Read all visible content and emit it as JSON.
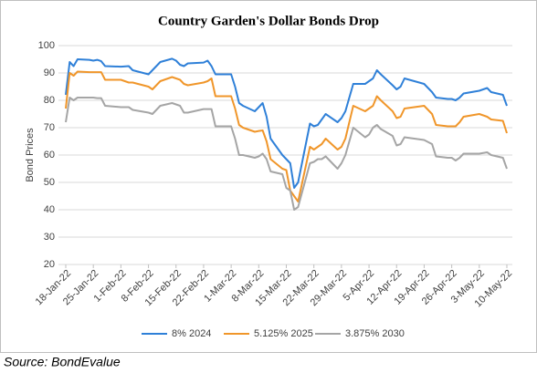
{
  "chart_data": {
    "type": "line",
    "title": "Country Garden's Dollar Bonds Drop",
    "y_label": "Bond Prices",
    "x": [
      "2022-01-18",
      "2022-01-19",
      "2022-01-20",
      "2022-01-21",
      "2022-01-24",
      "2022-01-25",
      "2022-01-26",
      "2022-01-27",
      "2022-01-28",
      "2022-02-01",
      "2022-02-03",
      "2022-02-04",
      "2022-02-08",
      "2022-02-09",
      "2022-02-11",
      "2022-02-14",
      "2022-02-15",
      "2022-02-16",
      "2022-02-17",
      "2022-02-18",
      "2022-02-22",
      "2022-02-23",
      "2022-02-24",
      "2022-02-25",
      "2022-03-01",
      "2022-03-02",
      "2022-03-03",
      "2022-03-04",
      "2022-03-07",
      "2022-03-08",
      "2022-03-09",
      "2022-03-10",
      "2022-03-11",
      "2022-03-14",
      "2022-03-15",
      "2022-03-16",
      "2022-03-17",
      "2022-03-18",
      "2022-03-21",
      "2022-03-22",
      "2022-03-23",
      "2022-03-24",
      "2022-03-25",
      "2022-03-28",
      "2022-03-29",
      "2022-03-30",
      "2022-04-01",
      "2022-04-04",
      "2022-04-05",
      "2022-04-06",
      "2022-04-07",
      "2022-04-08",
      "2022-04-11",
      "2022-04-12",
      "2022-04-13",
      "2022-04-14",
      "2022-04-19",
      "2022-04-21",
      "2022-04-22",
      "2022-04-25",
      "2022-04-26",
      "2022-04-27",
      "2022-04-28",
      "2022-04-29",
      "2022-05-03",
      "2022-05-05",
      "2022-05-06",
      "2022-05-09",
      "2022-05-10"
    ],
    "series": [
      {
        "name": "8% 2024",
        "color": "#2f80d8",
        "values": [
          82,
          94,
          92.5,
          95,
          94.8,
          94.5,
          94.8,
          94.3,
          92.5,
          92.3,
          92.5,
          91,
          89.5,
          91,
          94,
          95.2,
          94.5,
          93,
          92.5,
          93.5,
          93.8,
          94.5,
          92.5,
          89.5,
          89.5,
          85,
          79,
          78,
          76,
          77.5,
          79,
          74,
          66,
          60,
          58.5,
          57,
          48,
          50,
          71.5,
          70.5,
          71,
          73,
          75,
          72,
          73.5,
          76,
          86,
          86,
          87,
          88,
          91,
          89.5,
          85.5,
          84,
          85,
          88,
          86,
          83,
          81,
          80.5,
          80.5,
          80,
          81,
          82.5,
          83.5,
          84.5,
          83,
          82,
          78
        ]
      },
      {
        "name": "5.125% 2025",
        "color": "#f0962a",
        "values": [
          77,
          90,
          89,
          90.5,
          90.3,
          90.3,
          90.3,
          90.3,
          87.5,
          87.5,
          86.5,
          86.5,
          85,
          84,
          87,
          88.5,
          88,
          87.5,
          86,
          85.5,
          86.5,
          87,
          88,
          81.5,
          81.5,
          77,
          71,
          70,
          68.5,
          68.8,
          69,
          65,
          58.5,
          55,
          54.5,
          47,
          45,
          43,
          63,
          62,
          63,
          64,
          66,
          62,
          63,
          66,
          78,
          76,
          77,
          78,
          81.5,
          80,
          76,
          73.5,
          74,
          77,
          78,
          75,
          71,
          70.5,
          70.5,
          70.5,
          72,
          74,
          75,
          74,
          73,
          72.5,
          68
        ]
      },
      {
        "name": "3.875% 2030",
        "color": "#a5a5a5",
        "values": [
          72,
          81,
          80,
          81,
          81,
          81,
          80.8,
          80.8,
          78,
          77.5,
          77.5,
          76.5,
          75.5,
          75,
          78,
          79,
          78.5,
          78,
          75.5,
          75.5,
          76.8,
          76.8,
          76.8,
          70.5,
          70.5,
          66,
          60,
          60,
          59,
          59.5,
          60.5,
          58.5,
          54,
          53,
          48,
          47,
          40,
          41,
          57,
          57.5,
          58.5,
          58.5,
          59.5,
          55,
          57,
          60,
          70,
          66.5,
          67.5,
          70,
          71,
          69.5,
          67,
          63.5,
          64,
          66.5,
          65.5,
          64,
          59.5,
          59,
          59,
          58,
          59,
          60.5,
          60.5,
          61,
          60,
          59,
          55
        ]
      }
    ],
    "xlim": [
      "2022-01-18",
      "2022-05-10"
    ],
    "xticks": [
      {
        "value": "2022-01-18",
        "label": "18-Jan-22"
      },
      {
        "value": "2022-01-25",
        "label": "25-Jan-22"
      },
      {
        "value": "2022-02-01",
        "label": "1-Feb-22"
      },
      {
        "value": "2022-02-08",
        "label": "8-Feb-22"
      },
      {
        "value": "2022-02-15",
        "label": "15-Feb-22"
      },
      {
        "value": "2022-02-22",
        "label": "22-Feb-22"
      },
      {
        "value": "2022-03-01",
        "label": "1-Mar-22"
      },
      {
        "value": "2022-03-08",
        "label": "8-Mar-22"
      },
      {
        "value": "2022-03-15",
        "label": "15-Mar-22"
      },
      {
        "value": "2022-03-22",
        "label": "22-Mar-22"
      },
      {
        "value": "2022-03-29",
        "label": "29-Mar-22"
      },
      {
        "value": "2022-04-05",
        "label": "5-Apr-22"
      },
      {
        "value": "2022-04-12",
        "label": "12-Apr-22"
      },
      {
        "value": "2022-04-19",
        "label": "19-Apr-22"
      },
      {
        "value": "2022-04-26",
        "label": "26-Apr-22"
      },
      {
        "value": "2022-05-03",
        "label": "3-May-22"
      },
      {
        "value": "2022-05-10",
        "label": "10-May-22"
      }
    ],
    "ylim": [
      20,
      100
    ],
    "yticks": [
      20,
      30,
      40,
      50,
      60,
      70,
      80,
      90,
      100
    ],
    "grid": true,
    "legend": "bottom"
  },
  "source": "Source: BondEvalue"
}
